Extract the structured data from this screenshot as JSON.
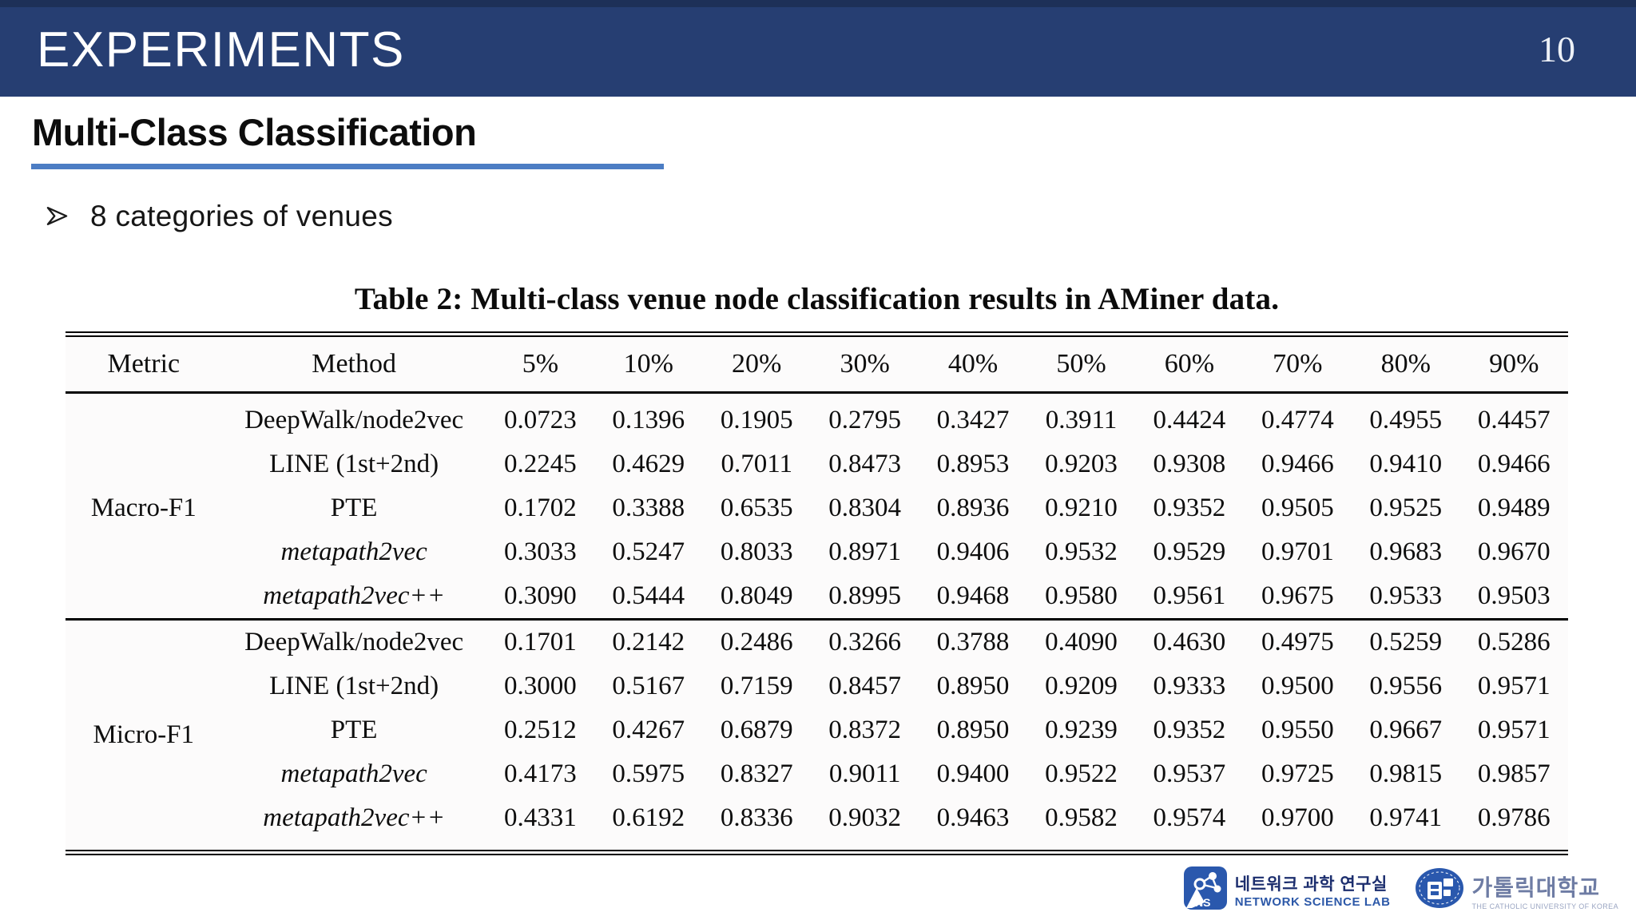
{
  "slide": {
    "header": {
      "title": "EXPERIMENTS",
      "page_number": "10"
    },
    "section": {
      "title": "Multi-Class Classification"
    },
    "bullet": {
      "text": "8 categories of venues"
    },
    "table": {
      "caption": "Table 2: Multi-class venue node classification results in AMiner data.",
      "columns": [
        "Metric",
        "Method",
        "5%",
        "10%",
        "20%",
        "30%",
        "40%",
        "50%",
        "60%",
        "70%",
        "80%",
        "90%"
      ],
      "groups": [
        {
          "metric": "Macro-F1",
          "rows": [
            {
              "method": "DeepWalk/node2vec",
              "italic": false,
              "values": [
                "0.0723",
                "0.1396",
                "0.1905",
                "0.2795",
                "0.3427",
                "0.3911",
                "0.4424",
                "0.4774",
                "0.4955",
                "0.4457"
              ]
            },
            {
              "method": "LINE (1st+2nd)",
              "italic": false,
              "values": [
                "0.2245",
                "0.4629",
                "0.7011",
                "0.8473",
                "0.8953",
                "0.9203",
                "0.9308",
                "0.9466",
                "0.9410",
                "0.9466"
              ]
            },
            {
              "method": "PTE",
              "italic": false,
              "values": [
                "0.1702",
                "0.3388",
                "0.6535",
                "0.8304",
                "0.8936",
                "0.9210",
                "0.9352",
                "0.9505",
                "0.9525",
                "0.9489"
              ]
            },
            {
              "method": "metapath2vec",
              "italic": true,
              "values": [
                "0.3033",
                "0.5247",
                "0.8033",
                "0.8971",
                "0.9406",
                "0.9532",
                "0.9529",
                "0.9701",
                "0.9683",
                "0.9670"
              ]
            },
            {
              "method": "metapath2vec++",
              "italic": true,
              "values": [
                "0.3090",
                "0.5444",
                "0.8049",
                "0.8995",
                "0.9468",
                "0.9580",
                "0.9561",
                "0.9675",
                "0.9533",
                "0.9503"
              ]
            }
          ]
        },
        {
          "metric": "Micro-F1",
          "rows": [
            {
              "method": "DeepWalk/node2vec",
              "italic": false,
              "values": [
                "0.1701",
                "0.2142",
                "0.2486",
                "0.3266",
                "0.3788",
                "0.4090",
                "0.4630",
                "0.4975",
                "0.5259",
                "0.5286"
              ]
            },
            {
              "method": "LINE (1st+2nd)",
              "italic": false,
              "values": [
                "0.3000",
                "0.5167",
                "0.7159",
                "0.8457",
                "0.8950",
                "0.9209",
                "0.9333",
                "0.9500",
                "0.9556",
                "0.9571"
              ]
            },
            {
              "method": "PTE",
              "italic": false,
              "values": [
                "0.2512",
                "0.4267",
                "0.6879",
                "0.8372",
                "0.8950",
                "0.9239",
                "0.9352",
                "0.9550",
                "0.9667",
                "0.9571"
              ]
            },
            {
              "method": "metapath2vec",
              "italic": true,
              "values": [
                "0.4173",
                "0.5975",
                "0.8327",
                "0.9011",
                "0.9400",
                "0.9522",
                "0.9537",
                "0.9725",
                "0.9815",
                "0.9857"
              ]
            },
            {
              "method": "metapath2vec++",
              "italic": true,
              "values": [
                "0.4331",
                "0.6192",
                "0.8336",
                "0.9032",
                "0.9463",
                "0.9582",
                "0.9574",
                "0.9700",
                "0.9741",
                "0.9786"
              ]
            }
          ]
        }
      ]
    },
    "footer": {
      "ns_logo": {
        "badge": "NS",
        "korean": "네트워크 과학 연구실",
        "english": "NETWORK SCIENCE LAB"
      },
      "cuk_logo": {
        "korean": "가톨릭대학교",
        "english": "THE CATHOLIC UNIVERSITY OF KOREA"
      }
    },
    "colors": {
      "header_navy": "#263e72",
      "underline_blue": "#4c7dc4",
      "logo_blue": "#2a58ad",
      "table_rule_black": "#000000"
    }
  }
}
